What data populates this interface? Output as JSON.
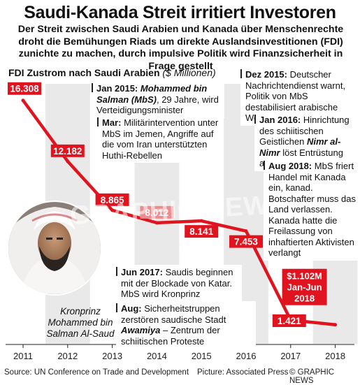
{
  "headline": "Saudi-Kanada Streit irritiert Investoren",
  "deck": "Der Streit zwischen Saudi Arabien und Kanada über Menschenrechte droht die Bemühungen Riads um direkte Auslandsinvestitionen (FDI) zunichte zu machen, durch impulsive Politik wird Finanzsicherheit in Frage gestellt",
  "colors": {
    "line": "#e0141f",
    "label_bg": "#e0141f",
    "label_pale": "#f08a8f",
    "band": "#e9e9e9"
  },
  "chart_data": {
    "type": "line",
    "title": "FDI Zustrom nach Saudi Arabien",
    "unit": "($ Millionen)",
    "x": [
      2011,
      2012,
      2013,
      2014,
      2015,
      2016,
      2017,
      2018
    ],
    "values": [
      16308,
      12182,
      8865,
      8012,
      8141,
      7453,
      1421,
      1102
    ],
    "value_labels": [
      "16.308",
      "12.182",
      "8.865",
      "8.012",
      "8.141",
      "7.453",
      "1.421",
      "$1.102M Jan-Jun 2018"
    ],
    "last_label_lines": [
      "$1.102M",
      "Jan-Jun",
      "2018"
    ],
    "tick_labels": [
      "2011",
      "2012",
      "2013",
      "2014",
      "2015",
      "2016",
      "2017",
      "2018"
    ],
    "ylim": [
      0,
      18000
    ],
    "grid": false
  },
  "annotations": {
    "a1": {
      "date": "Jan 2015:",
      "name": "Mohammed bin Salman (MbS)",
      "text": ", 29 Jahre, wird Verteidigungsminister"
    },
    "a2": {
      "date": "Mar:",
      "text": "Militärintervention unter MbS im Jemen, Angriffe auf die vom Iran unterstützten Huthi-Rebellen"
    },
    "a3": {
      "date": "Dez 2015:",
      "text": "Deutscher Nachrichtendienst warnt, Politik von MbS destabilisiert arabische Welt"
    },
    "a4": {
      "date": "Jan 2016:",
      "text_before": "Hinrichtung des schiitischen Geistlichen",
      "name": "Nimr al-Nimr",
      "text_after": "löst Entrüstung aus"
    },
    "a5": {
      "date": "Aug 2018:",
      "text": "MbS friert Handel mit Kanada ein, kanad. Botschafter muss das Land verlassen. Kanada hatte die Freilassung von inhaftierten Aktivisten verlangt"
    },
    "a6": {
      "date": "Jun 2017:",
      "text": "Saudis beginnen mit der Blockade von Katar. MbS wird Kronprinz"
    },
    "a7": {
      "date": "Aug:",
      "text_before": "Sicherheitstruppen zerstören saudische Stadt",
      "name": "Awamiya",
      "text_after": "– Zentrum der schiitischen Proteste"
    }
  },
  "portrait": {
    "caption_line1": "Kronprinz",
    "caption_line2": "Mohammed bin",
    "caption_line3": "Salman Al-Saud",
    "icon": "portrait-icon"
  },
  "watermark": "GRAPHIC NEWS",
  "footer": {
    "source": "Source: UN Conference on Trade and Development",
    "picture": "Picture: Associated Press",
    "credit": "© GRAPHIC NEWS"
  }
}
